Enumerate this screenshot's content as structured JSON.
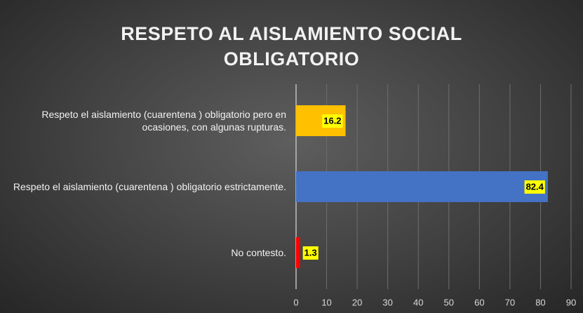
{
  "chart_data": {
    "type": "barh",
    "title": "RESPETO AL AISLAMIENTO SOCIAL OBLIGATORIO",
    "categories": [
      "Respeto el aislamiento (cuarentena ) obligatorio pero en ocasiones, con algunas rupturas.",
      "Respeto el aislamiento (cuarentena ) obligatorio estrictamente.",
      "No contesto."
    ],
    "values": [
      16.2,
      82.4,
      1.3
    ],
    "colors": [
      "#ffc000",
      "#4472c4",
      "#ff0000"
    ],
    "xlim": [
      0,
      90
    ],
    "xticks": [
      0,
      10,
      20,
      30,
      40,
      50,
      60,
      70,
      80,
      90
    ],
    "grid": true
  }
}
